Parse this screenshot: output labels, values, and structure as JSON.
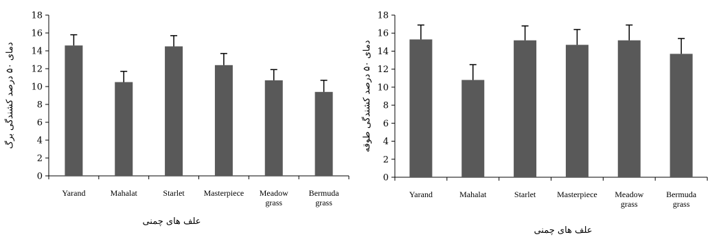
{
  "chart_data": [
    {
      "type": "bar",
      "categories": [
        [
          "Yarand"
        ],
        [
          "Mahalat"
        ],
        [
          "Starlet"
        ],
        [
          "Masterpiece"
        ],
        [
          "Meadow",
          "grass"
        ],
        [
          "Bermuda",
          "grass"
        ]
      ],
      "values": [
        14.6,
        10.5,
        14.5,
        12.4,
        10.7,
        9.4
      ],
      "errors": [
        1.2,
        1.2,
        1.2,
        1.3,
        1.2,
        1.3
      ],
      "ylim": [
        0,
        18
      ],
      "yticks": [
        0,
        2,
        4,
        6,
        8,
        10,
        12,
        14,
        16,
        18
      ],
      "xlabel": "علف های چمنی",
      "ylabel": "دمای ۵۰ درصد کشندگی برگ",
      "bar_color": "#595959",
      "grid": false
    },
    {
      "type": "bar",
      "categories": [
        [
          "Yarand"
        ],
        [
          "Mahalat"
        ],
        [
          "Starlet"
        ],
        [
          "Masterpiece"
        ],
        [
          "Meadow",
          "grass"
        ],
        [
          "Bermuda",
          "grass"
        ]
      ],
      "values": [
        15.3,
        10.8,
        15.2,
        14.7,
        15.2,
        13.7
      ],
      "errors": [
        1.6,
        1.7,
        1.6,
        1.7,
        1.7,
        1.7
      ],
      "ylim": [
        0,
        18
      ],
      "yticks": [
        0,
        2,
        4,
        6,
        8,
        10,
        12,
        14,
        16,
        18
      ],
      "xlabel": "علف های چمنی",
      "ylabel": "دمای ۵۰ درصد کشندگی طوقه",
      "bar_color": "#595959",
      "grid": false
    }
  ]
}
